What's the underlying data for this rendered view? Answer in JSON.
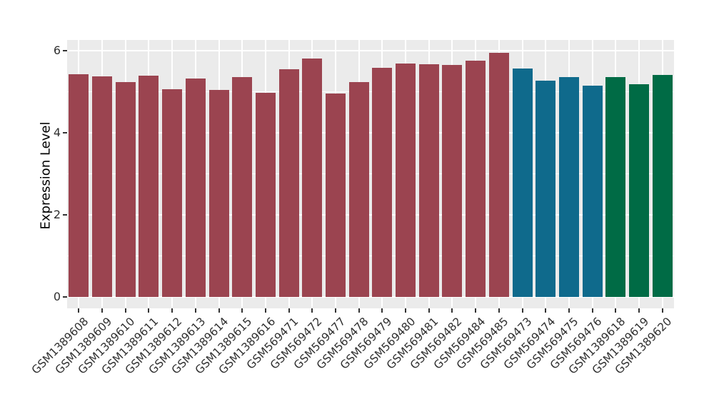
{
  "chart_data": {
    "type": "bar",
    "title": "",
    "xlabel": "",
    "ylabel": "Expression Level",
    "ylim": [
      0,
      6.26
    ],
    "yticks_major": [
      0,
      2,
      4,
      6
    ],
    "yticks_minor": [
      1,
      3,
      5
    ],
    "grid": "white major/minor gridlines on gray panel",
    "legend_position": "none",
    "categories": [
      "GSM1389608",
      "GSM1389609",
      "GSM1389610",
      "GSM1389611",
      "GSM1389612",
      "GSM1389613",
      "GSM1389614",
      "GSM1389615",
      "GSM1389616",
      "GSM569471",
      "GSM569472",
      "GSM569477",
      "GSM569478",
      "GSM569479",
      "GSM569480",
      "GSM569481",
      "GSM569482",
      "GSM569484",
      "GSM569485",
      "GSM569473",
      "GSM569474",
      "GSM569475",
      "GSM569476",
      "GSM1389618",
      "GSM1389619",
      "GSM1389620"
    ],
    "values": [
      5.42,
      5.37,
      5.23,
      5.39,
      5.06,
      5.31,
      5.04,
      5.36,
      4.97,
      5.54,
      5.8,
      4.95,
      5.23,
      5.58,
      5.69,
      5.66,
      5.65,
      5.76,
      5.95,
      5.56,
      5.26,
      5.35,
      5.14,
      5.36,
      5.17,
      5.41
    ],
    "bar_color_groups": [
      "maroon",
      "maroon",
      "maroon",
      "maroon",
      "maroon",
      "maroon",
      "maroon",
      "maroon",
      "maroon",
      "maroon",
      "maroon",
      "maroon",
      "maroon",
      "maroon",
      "maroon",
      "maroon",
      "maroon",
      "maroon",
      "maroon",
      "teal",
      "teal",
      "teal",
      "teal",
      "green",
      "green",
      "green"
    ],
    "palette": {
      "maroon": "#9B4450",
      "teal": "#0F6A8C",
      "green": "#006B45"
    }
  },
  "colors": {
    "figure_bg": "#FFFFFF",
    "panel_bg": "#EBEBEB",
    "gridline": "#FFFFFF",
    "tick_mark": "#333333",
    "axis_text": "#303030",
    "axis_title": "#000000"
  }
}
